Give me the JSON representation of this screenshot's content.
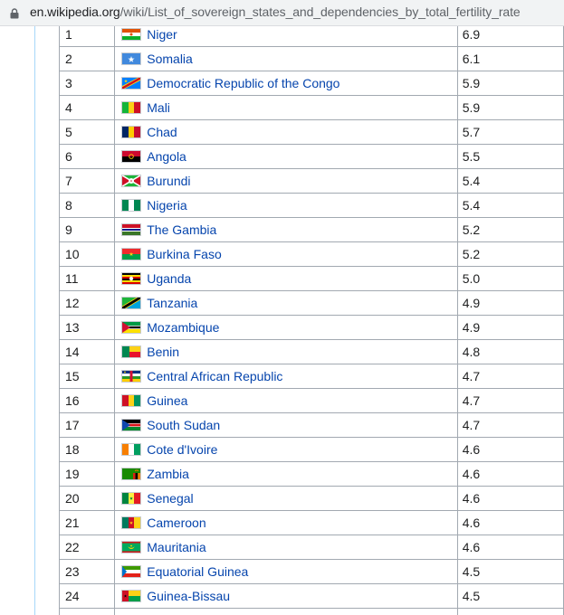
{
  "browser": {
    "url_host": "en.wikipedia.org",
    "url_path": "/wiki/List_of_sovereign_states_and_dependencies_by_total_fertility_rate"
  },
  "rows": [
    {
      "rank": "1",
      "country": "Niger",
      "rate": "6.9",
      "flag": "niger-flag-icon"
    },
    {
      "rank": "2",
      "country": "Somalia",
      "rate": "6.1",
      "flag": "somalia-flag-icon"
    },
    {
      "rank": "3",
      "country": "Democratic Republic of the Congo",
      "rate": "5.9",
      "flag": "dr-congo-flag-icon"
    },
    {
      "rank": "4",
      "country": "Mali",
      "rate": "5.9",
      "flag": "mali-flag-icon"
    },
    {
      "rank": "5",
      "country": "Chad",
      "rate": "5.7",
      "flag": "chad-flag-icon"
    },
    {
      "rank": "6",
      "country": "Angola",
      "rate": "5.5",
      "flag": "angola-flag-icon"
    },
    {
      "rank": "7",
      "country": "Burundi",
      "rate": "5.4",
      "flag": "burundi-flag-icon"
    },
    {
      "rank": "8",
      "country": "Nigeria",
      "rate": "5.4",
      "flag": "nigeria-flag-icon"
    },
    {
      "rank": "9",
      "country": "The Gambia",
      "rate": "5.2",
      "flag": "gambia-flag-icon"
    },
    {
      "rank": "10",
      "country": "Burkina Faso",
      "rate": "5.2",
      "flag": "burkina-faso-flag-icon"
    },
    {
      "rank": "11",
      "country": "Uganda",
      "rate": "5.0",
      "flag": "uganda-flag-icon"
    },
    {
      "rank": "12",
      "country": "Tanzania",
      "rate": "4.9",
      "flag": "tanzania-flag-icon"
    },
    {
      "rank": "13",
      "country": "Mozambique",
      "rate": "4.9",
      "flag": "mozambique-flag-icon"
    },
    {
      "rank": "14",
      "country": "Benin",
      "rate": "4.8",
      "flag": "benin-flag-icon"
    },
    {
      "rank": "15",
      "country": "Central African Republic",
      "rate": "4.7",
      "flag": "central-african-republic-flag-icon"
    },
    {
      "rank": "16",
      "country": "Guinea",
      "rate": "4.7",
      "flag": "guinea-flag-icon"
    },
    {
      "rank": "17",
      "country": "South Sudan",
      "rate": "4.7",
      "flag": "south-sudan-flag-icon"
    },
    {
      "rank": "18",
      "country": "Cote d'Ivoire",
      "rate": "4.6",
      "flag": "cote-divoire-flag-icon"
    },
    {
      "rank": "19",
      "country": "Zambia",
      "rate": "4.6",
      "flag": "zambia-flag-icon"
    },
    {
      "rank": "20",
      "country": "Senegal",
      "rate": "4.6",
      "flag": "senegal-flag-icon"
    },
    {
      "rank": "21",
      "country": "Cameroon",
      "rate": "4.6",
      "flag": "cameroon-flag-icon"
    },
    {
      "rank": "22",
      "country": "Mauritania",
      "rate": "4.6",
      "flag": "mauritania-flag-icon"
    },
    {
      "rank": "23",
      "country": "Equatorial Guinea",
      "rate": "4.5",
      "flag": "equatorial-guinea-flag-icon"
    },
    {
      "rank": "24",
      "country": "Guinea-Bissau",
      "rate": "4.5",
      "flag": "guinea-bissau-flag-icon"
    },
    {
      "rank": "",
      "country": "",
      "rate": "",
      "flag": ""
    }
  ],
  "colors": {
    "link": "#0645ad",
    "table_border": "#a2a9b1",
    "address_bar_bg": "#f1f3f4",
    "content_rule": "#a7d7f9"
  }
}
